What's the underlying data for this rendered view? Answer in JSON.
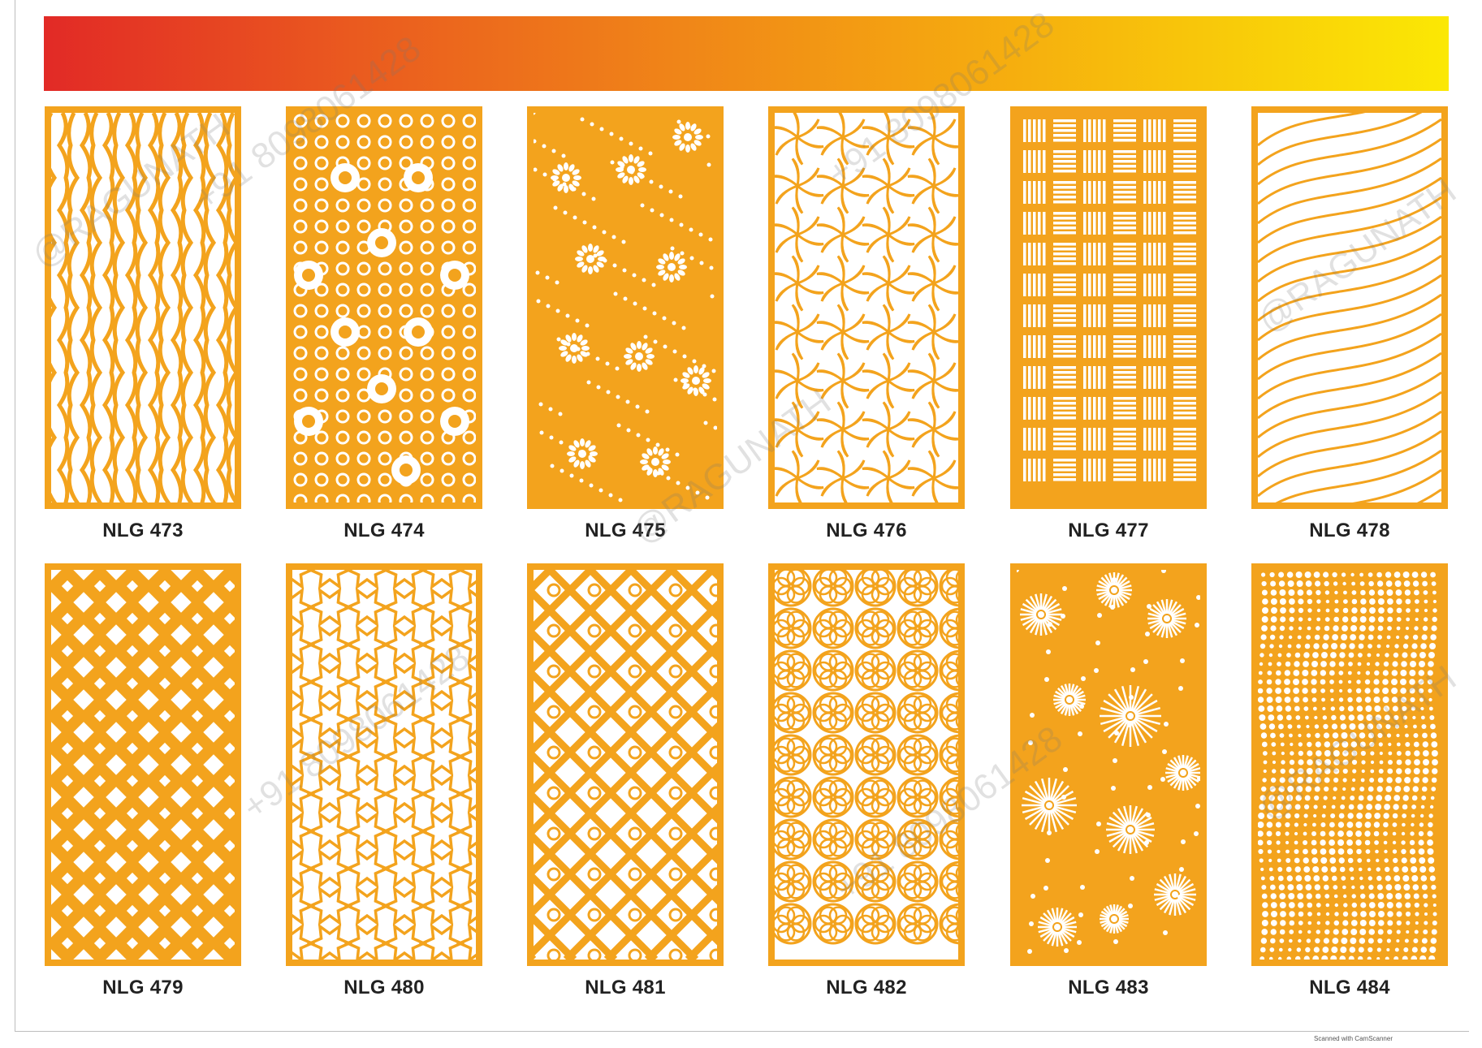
{
  "banner": {
    "gradient_colors": [
      "#e22a26",
      "#f08518",
      "#fbe804"
    ]
  },
  "panel_color": "#f3a31d",
  "panels": [
    {
      "label": "NLG 473",
      "pattern": "waves"
    },
    {
      "label": "NLG 474",
      "pattern": "rings"
    },
    {
      "label": "NLG 475",
      "pattern": "flower-dots"
    },
    {
      "label": "NLG 476",
      "pattern": "pinwheel"
    },
    {
      "label": "NLG 477",
      "pattern": "basket"
    },
    {
      "label": "NLG 478",
      "pattern": "feather"
    },
    {
      "label": "NLG 479",
      "pattern": "diamond-weave"
    },
    {
      "label": "NLG 480",
      "pattern": "star-lattice"
    },
    {
      "label": "NLG 481",
      "pattern": "diagonal-lattice"
    },
    {
      "label": "NLG 482",
      "pattern": "flower-circles"
    },
    {
      "label": "NLG 483",
      "pattern": "sunburst"
    },
    {
      "label": "NLG 484",
      "pattern": "dot-wave"
    }
  ],
  "watermark": {
    "line1": "@RAGUNATH",
    "line2": "+91 8098061428"
  },
  "footer_credit": "Scanned with CamScanner"
}
